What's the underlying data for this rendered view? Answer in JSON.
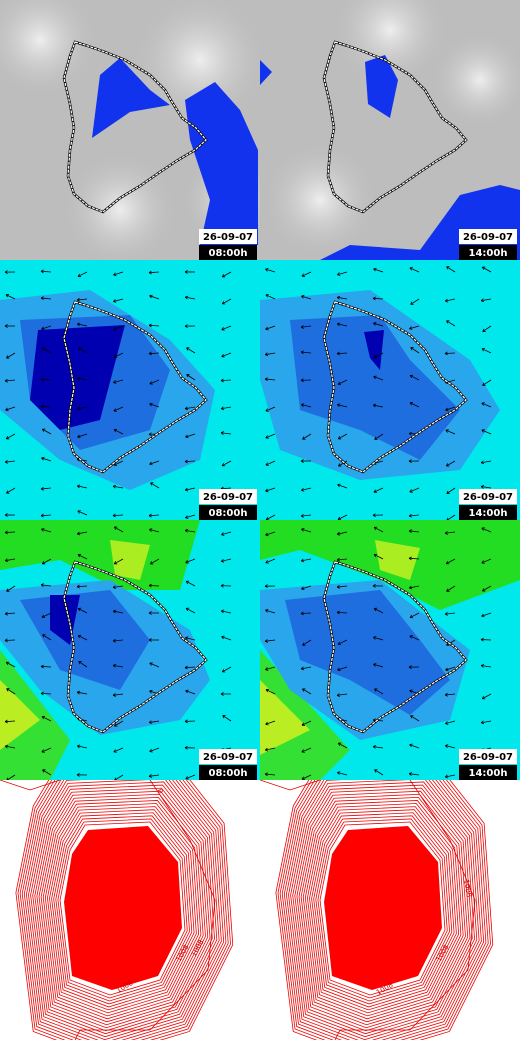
{
  "panels": [
    {
      "date": "26-09-07",
      "time": "08:00h"
    },
    {
      "date": "26-09-07",
      "time": "14:00h"
    },
    {
      "date": "26-09-07",
      "time": "08:00h"
    },
    {
      "date": "26-09-07",
      "time": "14:00h"
    },
    {
      "date": "26-09-07",
      "time": "08:00h"
    },
    {
      "date": "26-09-07",
      "time": "14:00h"
    }
  ],
  "contour_labels": [
    [
      "0",
      "1008",
      "1008",
      "1008"
    ],
    [
      "1008",
      "1008",
      "1008"
    ]
  ]
}
